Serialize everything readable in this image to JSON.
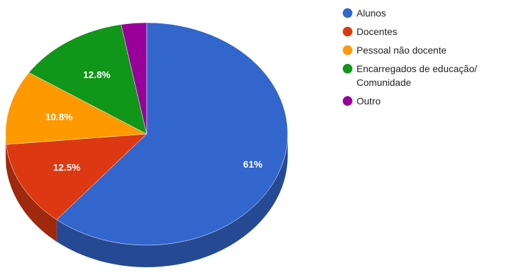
{
  "chart_data": {
    "type": "pie",
    "title": "",
    "legend_position": "right",
    "three_d": true,
    "slices": [
      {
        "name": "Alunos",
        "value": 61.0,
        "label": "61%",
        "color": "#3366cc"
      },
      {
        "name": "Docentes",
        "value": 12.5,
        "label": "12.5%",
        "color": "#dc3912"
      },
      {
        "name": "Pessoal não docente",
        "value": 10.8,
        "label": "10.8%",
        "color": "#ff9900"
      },
      {
        "name": "Encarregados de educação/\nComunidade",
        "value": 12.8,
        "label": "12.8%",
        "color": "#109618"
      },
      {
        "name": "Outro",
        "value": 2.9,
        "label": "",
        "color": "#990099"
      }
    ]
  }
}
